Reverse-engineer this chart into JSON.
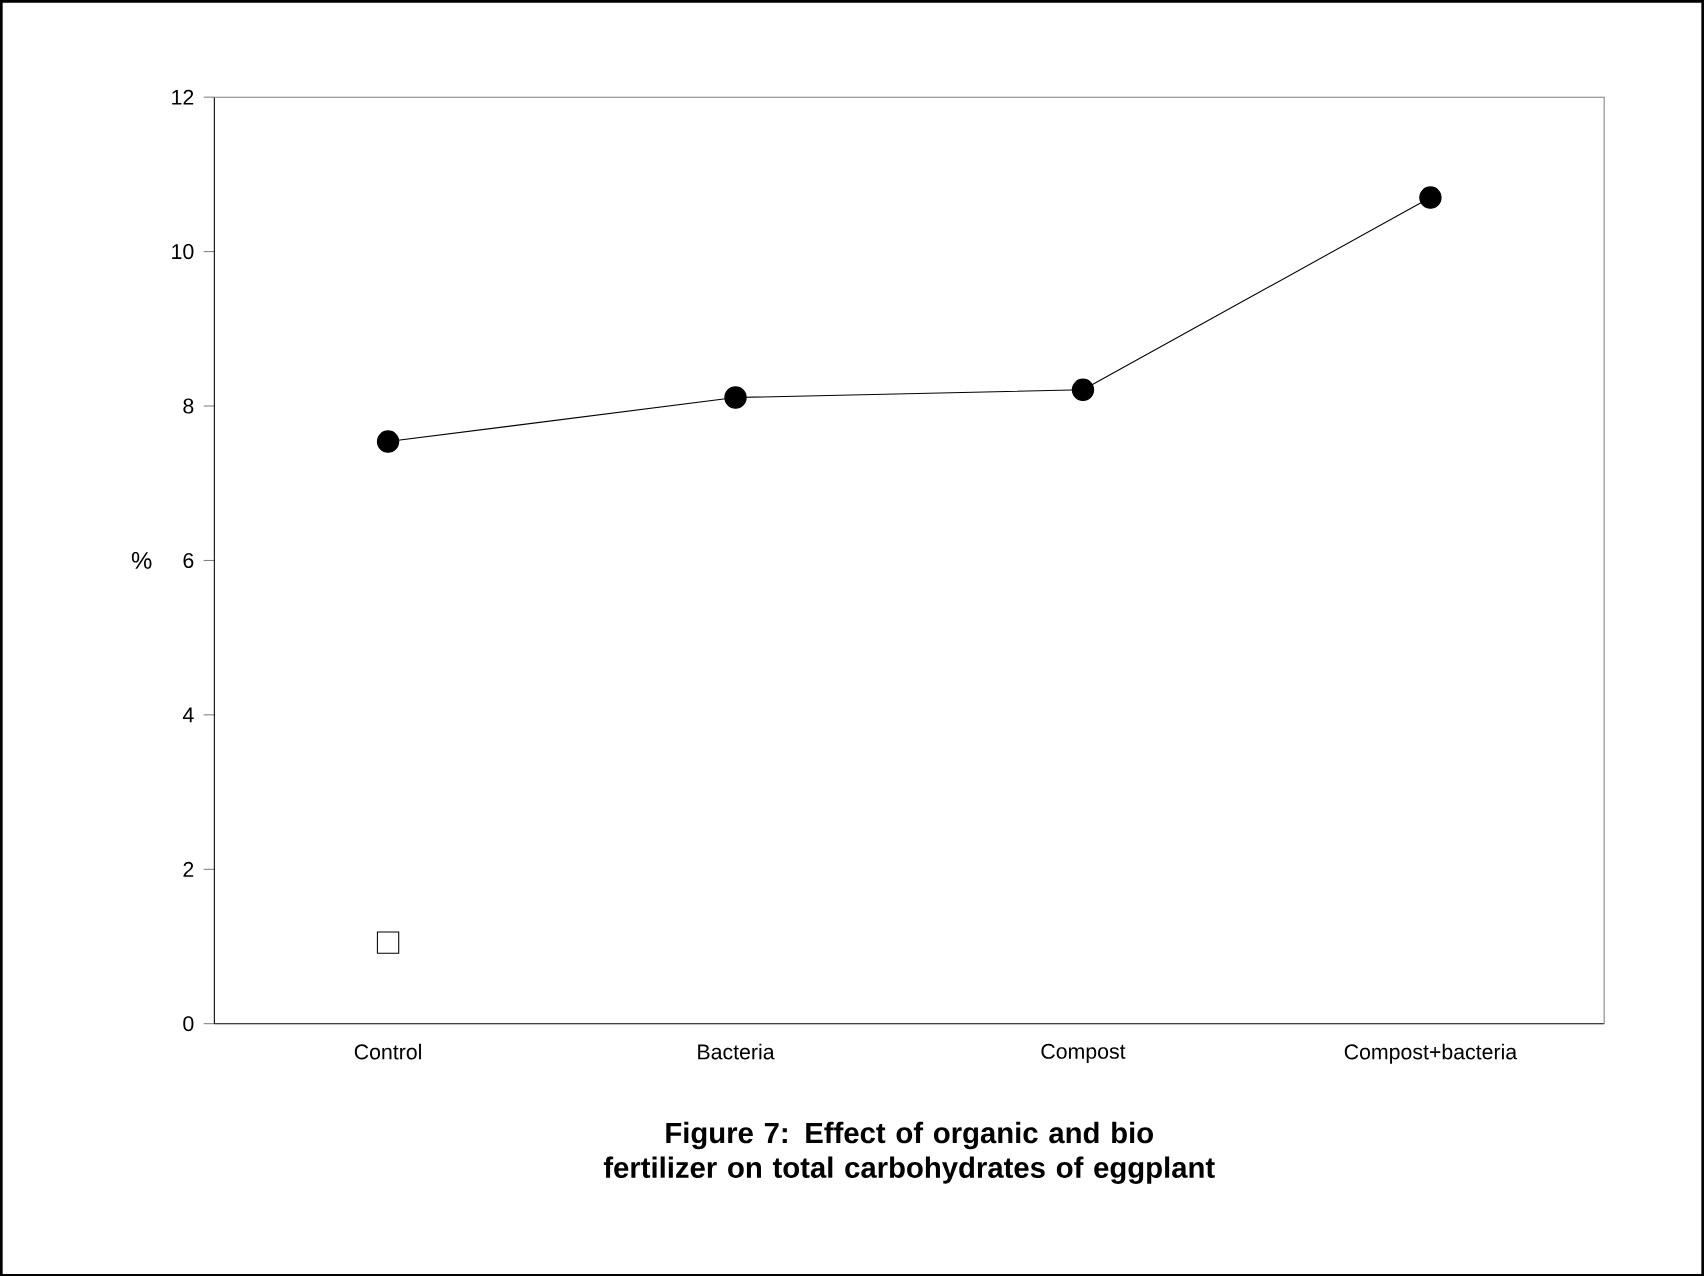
{
  "chart_data": {
    "type": "line",
    "title": "Figure 7: Effect of organic and bio fertilizer on total carbohydrates of eggplant",
    "ylabel": "%",
    "categories": [
      "Control",
      "Bacteria",
      "Compost",
      "Compost+bacteria"
    ],
    "series": [
      {
        "color": "#000000",
        "values": [
          7.54,
          8.11,
          8.21,
          10.7
        ],
        "marker": "circle",
        "line_style": "solid"
      },
      {
        "type": "scatter",
        "color": "#000000",
        "values": [
          1.05,
          null,
          null,
          null
        ],
        "marker": "square"
      }
    ],
    "ylim": [
      0,
      12
    ],
    "yticks": [
      0,
      2,
      4,
      6,
      8,
      10,
      12
    ],
    "grid": false
  }
}
